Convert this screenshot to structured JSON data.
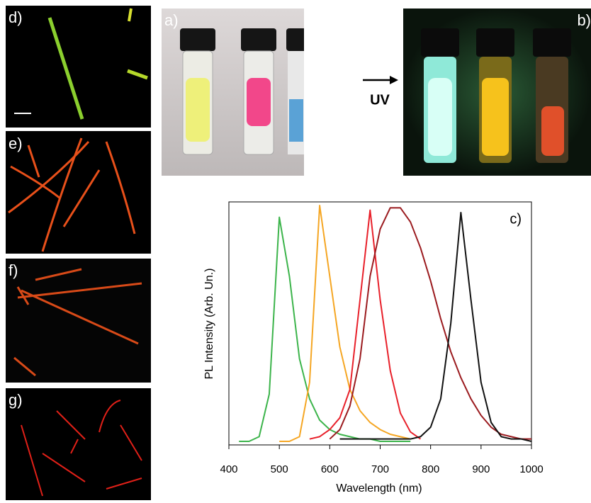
{
  "panels": {
    "a": "a)",
    "b": "b)",
    "c": "c)",
    "d": "d)",
    "e": "e)",
    "f": "f)",
    "g": "g)"
  },
  "arrow_label": "UV",
  "chart_data": {
    "type": "line",
    "xlabel": "Wavelength (nm)",
    "ylabel": "PL Intensity (Arb. Un.)",
    "x": [
      420,
      440,
      460,
      480,
      500,
      520,
      540,
      560,
      580,
      600,
      620,
      640,
      660,
      680,
      700,
      720,
      740,
      760,
      780,
      800,
      820,
      840,
      860,
      880,
      900,
      920,
      940,
      960,
      980,
      1000
    ],
    "xlim": [
      400,
      1000
    ],
    "xticks": [
      400,
      500,
      600,
      700,
      800,
      900,
      1000
    ],
    "ylim": [
      -0.015,
      1.015
    ],
    "series": [
      {
        "color": "#3cb44b",
        "values": [
          0,
          0,
          0.02,
          0.2,
          0.95,
          0.7,
          0.35,
          0.18,
          0.09,
          0.05,
          0.03,
          0.02,
          0.01,
          0.01,
          0,
          0,
          0,
          0,
          null,
          null,
          null,
          null,
          null,
          null,
          null,
          null,
          null,
          null,
          null,
          null
        ]
      },
      {
        "color": "#f5a623",
        "values": [
          null,
          null,
          null,
          null,
          0,
          0,
          0.02,
          0.25,
          1.0,
          0.7,
          0.4,
          0.22,
          0.13,
          0.08,
          0.05,
          0.03,
          0.02,
          0.01,
          null,
          null,
          null,
          null,
          null,
          null,
          null,
          null,
          null,
          null,
          null,
          null
        ]
      },
      {
        "color": "#e8202a",
        "values": [
          null,
          null,
          null,
          null,
          null,
          null,
          null,
          0.01,
          0.02,
          0.05,
          0.1,
          0.22,
          0.6,
          0.98,
          0.6,
          0.3,
          0.12,
          0.04,
          0.01,
          null,
          null,
          null,
          null,
          null,
          null,
          null,
          null,
          null,
          null,
          null
        ]
      },
      {
        "color": "#9b1b1f",
        "values": [
          null,
          null,
          null,
          null,
          null,
          null,
          null,
          null,
          null,
          0.01,
          0.05,
          0.15,
          0.35,
          0.7,
          0.9,
          0.99,
          0.99,
          0.93,
          0.82,
          0.68,
          0.52,
          0.38,
          0.27,
          0.18,
          0.11,
          0.06,
          0.03,
          0.02,
          0.01,
          0.01
        ]
      },
      {
        "color": "#111111",
        "values": [
          null,
          null,
          null,
          null,
          null,
          null,
          null,
          null,
          null,
          null,
          0.01,
          0.01,
          0.01,
          0.01,
          0.01,
          0.01,
          0.01,
          0.01,
          0.02,
          0.06,
          0.18,
          0.5,
          0.97,
          0.6,
          0.25,
          0.08,
          0.02,
          0.01,
          0.01,
          0
        ]
      }
    ]
  }
}
